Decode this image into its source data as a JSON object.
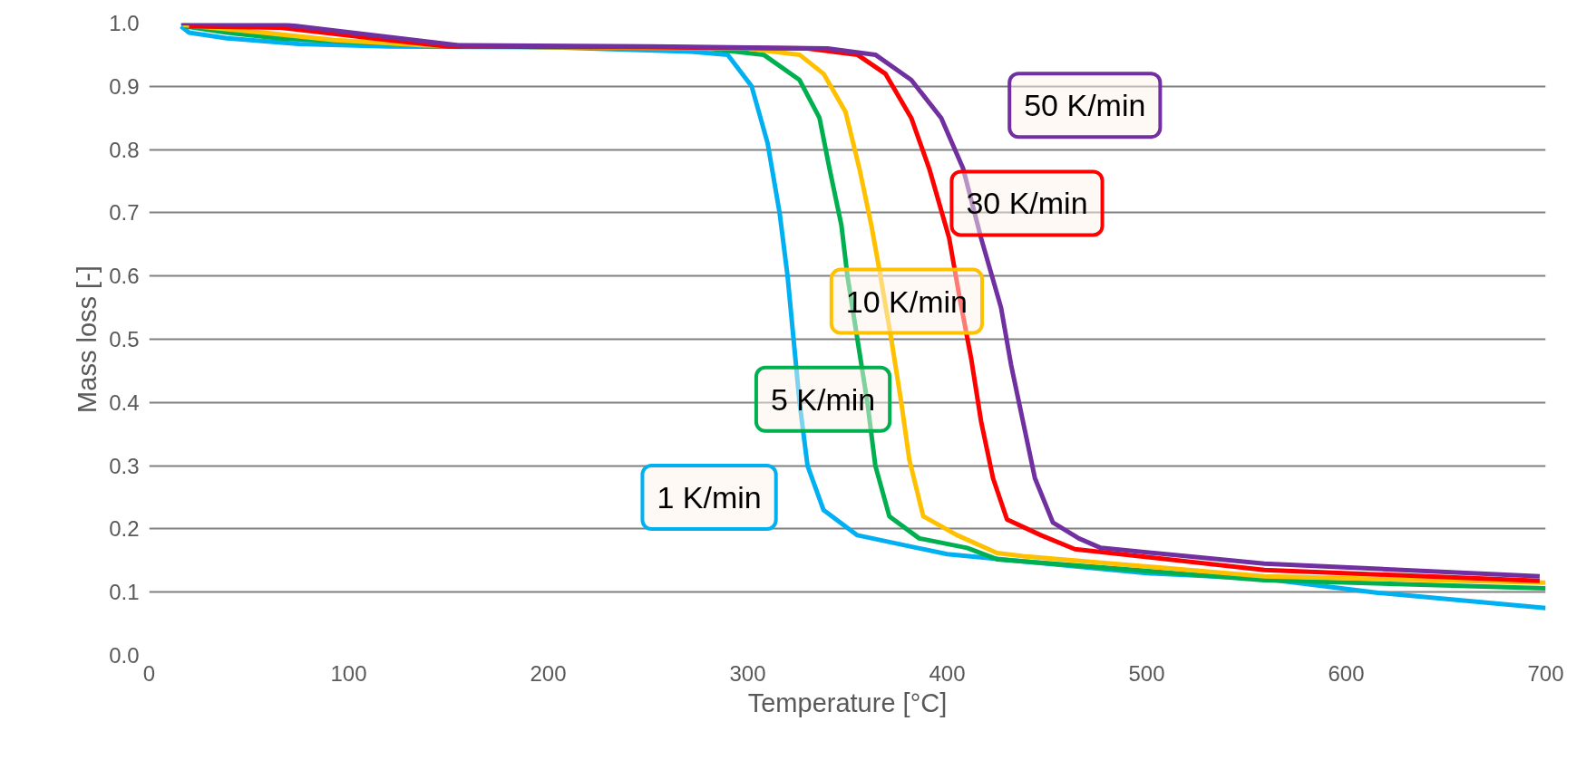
{
  "chart_data": {
    "type": "line",
    "xlabel": "Temperature [°C]",
    "ylabel": "Mass loss [-]",
    "xlim": [
      0,
      700
    ],
    "xticks": [
      0,
      100,
      200,
      300,
      400,
      500,
      600,
      700
    ],
    "ylim": [
      0,
      1
    ],
    "yticks": [
      {
        "value": 0,
        "label": "0.0"
      },
      0.1,
      0.2,
      0.3,
      0.4,
      0.5,
      0.6,
      0.7,
      0.8,
      0.9,
      {
        "value": 1,
        "label": "1.0"
      }
    ],
    "grid": "y",
    "legend": false,
    "marker": "none",
    "line_style": "solid",
    "series": [
      {
        "name": "1 K/min",
        "color": "#00b0f0",
        "x": [
          16,
          20,
          39,
          75,
          120,
          200,
          271,
          290,
          302,
          310,
          316,
          320,
          323,
          326,
          330,
          338,
          355,
          400,
          500,
          559,
          616,
          700
        ],
        "values": [
          0.995,
          0.985,
          0.976,
          0.967,
          0.963,
          0.962,
          0.955,
          0.95,
          0.9,
          0.81,
          0.7,
          0.6,
          0.5,
          0.4,
          0.3,
          0.23,
          0.19,
          0.16,
          0.13,
          0.121,
          0.099,
          0.075
        ]
      },
      {
        "name": "5 K/min",
        "color": "#00b050",
        "x": [
          18,
          39,
          65,
          102,
          140,
          200,
          280,
          308,
          326,
          336,
          341,
          347,
          350,
          355,
          360,
          364,
          371,
          386,
          410,
          425,
          559,
          700
        ],
        "values": [
          0.995,
          0.985,
          0.976,
          0.97,
          0.965,
          0.962,
          0.96,
          0.95,
          0.91,
          0.85,
          0.77,
          0.68,
          0.6,
          0.5,
          0.4,
          0.3,
          0.22,
          0.185,
          0.17,
          0.152,
          0.119,
          0.106
        ]
      },
      {
        "name": "10 K/min",
        "color": "#ffc000",
        "x": [
          17,
          57,
          93,
          138,
          200,
          300,
          326,
          338,
          349,
          356,
          362,
          366,
          372,
          377,
          381,
          388,
          405,
          425,
          438,
          559,
          700
        ],
        "values": [
          0.997,
          0.985,
          0.973,
          0.965,
          0.962,
          0.96,
          0.95,
          0.92,
          0.86,
          0.77,
          0.68,
          0.61,
          0.5,
          0.4,
          0.31,
          0.22,
          0.19,
          0.162,
          0.157,
          0.125,
          0.115
        ]
      },
      {
        "name": "30 K/min",
        "color": "#ff0000",
        "x": [
          20,
          65,
          120,
          150,
          250,
          330,
          355,
          369,
          382,
          391,
          401,
          406,
          412,
          417,
          423,
          430,
          447,
          464,
          559,
          697
        ],
        "values": [
          0.995,
          0.993,
          0.973,
          0.963,
          0.962,
          0.96,
          0.95,
          0.92,
          0.85,
          0.77,
          0.66,
          0.57,
          0.47,
          0.37,
          0.28,
          0.215,
          0.19,
          0.168,
          0.135,
          0.118
        ]
      },
      {
        "name": "50 K/min",
        "color": "#7030a0",
        "x": [
          16,
          69,
          155,
          250,
          340,
          364,
          382,
          397,
          408,
          417,
          427,
          432,
          438,
          444,
          453,
          466,
          477,
          559,
          697
        ],
        "values": [
          1.0,
          0.997,
          0.965,
          0.963,
          0.96,
          0.95,
          0.91,
          0.85,
          0.77,
          0.66,
          0.55,
          0.46,
          0.37,
          0.28,
          0.21,
          0.185,
          0.17,
          0.145,
          0.125
        ]
      }
    ]
  }
}
